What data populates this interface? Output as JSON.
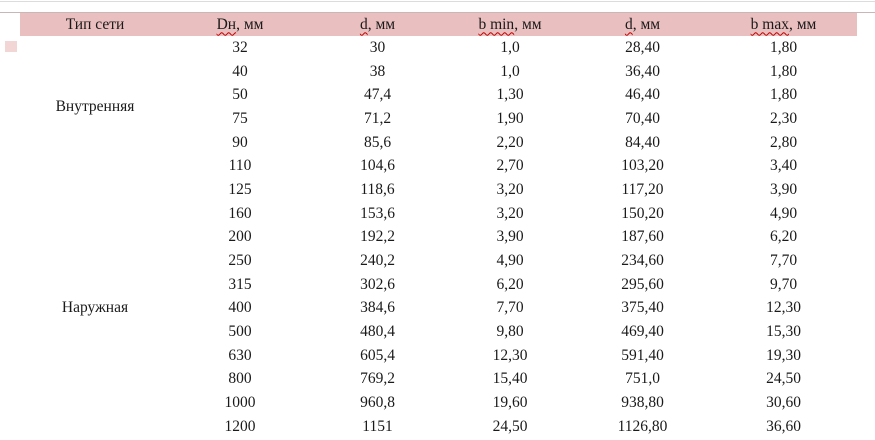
{
  "colors": {
    "header_bg": "#eabfbf",
    "spellcheck_underline": "#c00000",
    "top_line": "#dcdcdc",
    "band_border": "#c9b6b6",
    "text": "#1a1a1a",
    "left_chip": "#f2d6d6"
  },
  "table": {
    "headers": [
      {
        "mark": "",
        "tail": "Тип сети"
      },
      {
        "mark": "Dн",
        "tail": ", мм"
      },
      {
        "mark": "d",
        "tail": ", мм"
      },
      {
        "mark": "b min",
        "tail": ", мм"
      },
      {
        "mark": "d",
        "tail": ", мм"
      },
      {
        "mark": "b max",
        "tail": ", мм"
      }
    ],
    "groups": [
      {
        "label": "Внутренняя",
        "rows": [
          [
            "32",
            "30",
            "1,0",
            "28,40",
            "1,80"
          ],
          [
            "40",
            "38",
            "1,0",
            "36,40",
            "1,80"
          ],
          [
            "50",
            "47,4",
            "1,30",
            "46,40",
            "1,80"
          ],
          [
            "75",
            "71,2",
            "1,90",
            "70,40",
            "2,30"
          ],
          [
            "90",
            "85,6",
            "2,20",
            "84,40",
            "2,80"
          ],
          [
            "110",
            "104,6",
            "2,70",
            "103,20",
            "3,40"
          ]
        ]
      },
      {
        "label": "Наружная",
        "rows": [
          [
            "125",
            "118,6",
            "3,20",
            "117,20",
            "3,90"
          ],
          [
            "160",
            "153,6",
            "3,20",
            "150,20",
            "4,90"
          ],
          [
            "200",
            "192,2",
            "3,90",
            "187,60",
            "6,20"
          ],
          [
            "250",
            "240,2",
            "4,90",
            "234,60",
            "7,70"
          ],
          [
            "315",
            "302,6",
            "6,20",
            "295,60",
            "9,70"
          ],
          [
            "400",
            "384,6",
            "7,70",
            "375,40",
            "12,30"
          ],
          [
            "500",
            "480,4",
            "9,80",
            "469,40",
            "15,30"
          ],
          [
            "630",
            "605,4",
            "12,30",
            "591,40",
            "19,30"
          ],
          [
            "800",
            "769,2",
            "15,40",
            "751,0",
            "24,50"
          ],
          [
            "1000",
            "960,8",
            "19,60",
            "938,80",
            "30,60"
          ],
          [
            "1200",
            "1151",
            "24,50",
            "1126,80",
            "36,60"
          ]
        ]
      }
    ]
  }
}
